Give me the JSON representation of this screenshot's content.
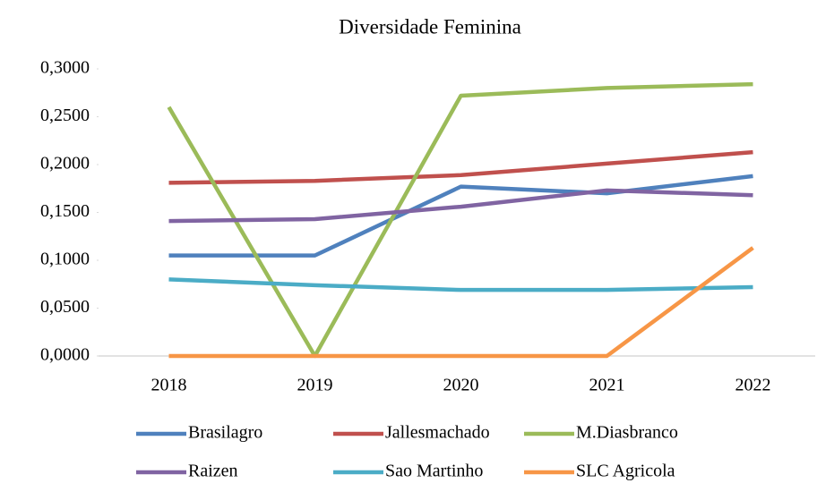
{
  "chart_data": {
    "type": "line",
    "title": "Diversidade Feminina",
    "categories": [
      "2018",
      "2019",
      "2020",
      "2021",
      "2022"
    ],
    "series": [
      {
        "name": "Brasilagro",
        "color": "#4f81bd",
        "values": [
          0.105,
          0.105,
          0.177,
          0.17,
          0.188
        ]
      },
      {
        "name": "Jallesmachado",
        "color": "#c0504d",
        "values": [
          0.181,
          0.183,
          0.189,
          0.201,
          0.213
        ]
      },
      {
        "name": "M.Diasbranco",
        "color": "#9bbb59",
        "values": [
          0.26,
          0.0,
          0.272,
          0.28,
          0.284
        ]
      },
      {
        "name": "Raizen",
        "color": "#8064a2",
        "values": [
          0.141,
          0.143,
          0.156,
          0.173,
          0.168
        ]
      },
      {
        "name": "Sao Martinho",
        "color": "#4bacc6",
        "values": [
          0.08,
          0.074,
          0.069,
          0.069,
          0.072
        ]
      },
      {
        "name": "SLC Agricola",
        "color": "#f79646",
        "values": [
          0,
          0,
          0,
          0,
          0.113
        ]
      }
    ],
    "ylim": [
      0,
      0.3
    ],
    "yticks": [
      {
        "value": 0,
        "label": "0,0000"
      },
      {
        "value": 0.05,
        "label": "0,0500"
      },
      {
        "value": 0.1,
        "label": "0,1000"
      },
      {
        "value": 0.15,
        "label": "0,1500"
      },
      {
        "value": 0.2,
        "label": "0,2000"
      },
      {
        "value": 0.25,
        "label": "0,2500"
      },
      {
        "value": 0.3,
        "label": "0,3000"
      }
    ],
    "grid": false,
    "legend": "bottom"
  }
}
